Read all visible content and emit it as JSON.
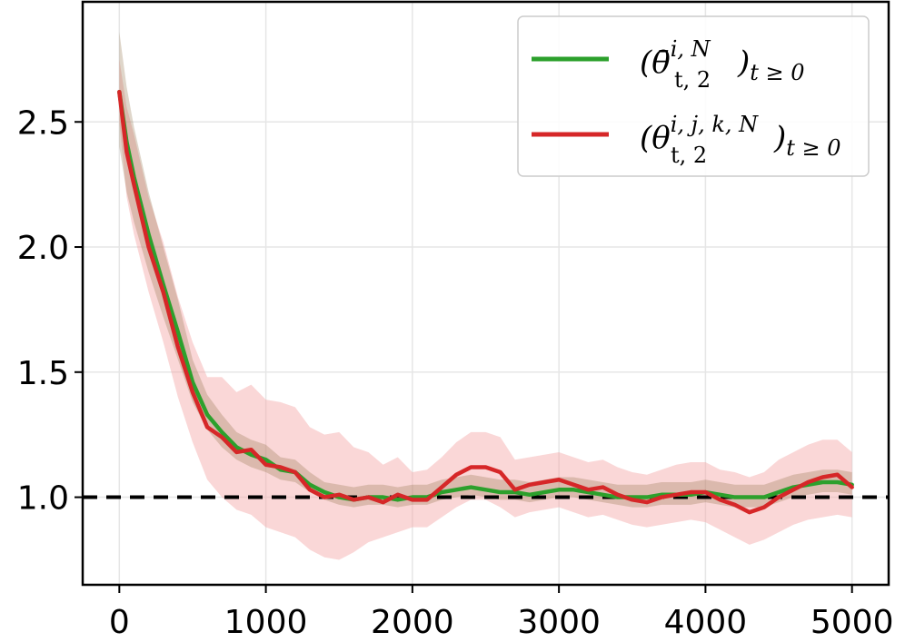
{
  "chart_data": {
    "type": "line",
    "title": "",
    "xlabel": "",
    "ylabel": "",
    "xlim": [
      -250,
      5250
    ],
    "ylim": [
      0.65,
      2.98
    ],
    "xticks": [
      0,
      1000,
      2000,
      3000,
      4000,
      5000
    ],
    "xtick_labels": [
      "0",
      "1000",
      "2000",
      "3000",
      "4000",
      "5000"
    ],
    "yticks": [
      1.0,
      1.5,
      2.0,
      2.5
    ],
    "ytick_labels": [
      "1.0",
      "1.5",
      "2.0",
      "2.5"
    ],
    "grid": true,
    "legend_position": "top-right",
    "reference_line": {
      "y": 1.0,
      "style": "dashed",
      "color": "#000000"
    },
    "series": [
      {
        "name": "(θ̄^{i,N}_{t,2})_{t≥0}",
        "legend": {
          "main": "(θ̄",
          "sup": "i, N",
          "sub": "t, 2",
          "tail": ")",
          "tail_sub": "t ≥ 0"
        },
        "color": "#2ca02c",
        "band_color": "#8c6d3f",
        "band_opacity": 0.28,
        "x": [
          0,
          50,
          100,
          200,
          300,
          400,
          500,
          600,
          700,
          800,
          900,
          1000,
          1100,
          1200,
          1300,
          1400,
          1500,
          1600,
          1700,
          1800,
          1900,
          2000,
          2100,
          2200,
          2300,
          2400,
          2500,
          2600,
          2700,
          2800,
          2900,
          3000,
          3100,
          3200,
          3300,
          3400,
          3500,
          3600,
          3700,
          3800,
          3900,
          4000,
          4100,
          4200,
          4300,
          4400,
          4500,
          4600,
          4700,
          4800,
          4900,
          5000
        ],
        "y": [
          2.62,
          2.42,
          2.28,
          2.05,
          1.85,
          1.66,
          1.46,
          1.33,
          1.26,
          1.2,
          1.17,
          1.15,
          1.11,
          1.1,
          1.05,
          1.02,
          1.0,
          0.99,
          1.0,
          1.0,
          0.99,
          1.0,
          1.0,
          1.02,
          1.03,
          1.04,
          1.03,
          1.02,
          1.02,
          1.01,
          1.02,
          1.03,
          1.03,
          1.02,
          1.01,
          1.0,
          1.0,
          1.0,
          1.01,
          1.01,
          1.01,
          1.02,
          1.01,
          1.0,
          1.0,
          1.0,
          1.02,
          1.04,
          1.05,
          1.06,
          1.06,
          1.05
        ],
        "band_lower": [
          2.4,
          2.22,
          2.1,
          1.9,
          1.72,
          1.55,
          1.38,
          1.27,
          1.2,
          1.15,
          1.12,
          1.1,
          1.07,
          1.06,
          1.02,
          0.99,
          0.97,
          0.96,
          0.97,
          0.97,
          0.96,
          0.97,
          0.97,
          0.99,
          1.0,
          1.01,
          1.0,
          0.99,
          0.99,
          0.98,
          0.99,
          1.0,
          1.0,
          0.99,
          0.98,
          0.97,
          0.96,
          0.96,
          0.97,
          0.97,
          0.97,
          0.98,
          0.97,
          0.96,
          0.96,
          0.96,
          0.98,
          1.0,
          1.01,
          1.02,
          1.02,
          1.01
        ],
        "band_upper": [
          2.86,
          2.64,
          2.48,
          2.22,
          2.0,
          1.79,
          1.55,
          1.41,
          1.33,
          1.26,
          1.23,
          1.21,
          1.16,
          1.15,
          1.1,
          1.06,
          1.05,
          1.04,
          1.05,
          1.05,
          1.04,
          1.05,
          1.05,
          1.07,
          1.08,
          1.09,
          1.08,
          1.07,
          1.07,
          1.06,
          1.07,
          1.08,
          1.08,
          1.07,
          1.06,
          1.05,
          1.05,
          1.05,
          1.06,
          1.06,
          1.06,
          1.07,
          1.06,
          1.05,
          1.05,
          1.05,
          1.07,
          1.09,
          1.1,
          1.11,
          1.11,
          1.1
        ]
      },
      {
        "name": "(θ^{i,j,k,N}_{t,2})_{t≥0}",
        "legend": {
          "main": "(θ",
          "sup": "i, j, k, N",
          "sub": "t, 2",
          "tail": ")",
          "tail_sub": "t ≥ 0"
        },
        "color": "#d62728",
        "band_color": "#f4a6a6",
        "band_opacity": 0.45,
        "x": [
          0,
          50,
          100,
          200,
          300,
          400,
          500,
          600,
          700,
          800,
          900,
          1000,
          1100,
          1200,
          1300,
          1400,
          1500,
          1600,
          1700,
          1800,
          1900,
          2000,
          2100,
          2200,
          2300,
          2400,
          2500,
          2600,
          2700,
          2800,
          2900,
          3000,
          3100,
          3200,
          3300,
          3400,
          3500,
          3600,
          3700,
          3800,
          3900,
          4000,
          4100,
          4200,
          4300,
          4400,
          4500,
          4600,
          4700,
          4800,
          4900,
          5000
        ],
        "y": [
          2.62,
          2.38,
          2.25,
          2.0,
          1.82,
          1.6,
          1.42,
          1.28,
          1.24,
          1.18,
          1.19,
          1.13,
          1.12,
          1.1,
          1.03,
          1.0,
          1.01,
          0.99,
          1.0,
          0.98,
          1.01,
          0.99,
          0.99,
          1.04,
          1.09,
          1.12,
          1.12,
          1.1,
          1.03,
          1.05,
          1.06,
          1.07,
          1.05,
          1.03,
          1.04,
          1.01,
          0.99,
          0.98,
          1.0,
          1.01,
          1.02,
          1.02,
          0.99,
          0.97,
          0.94,
          0.96,
          1.0,
          1.03,
          1.06,
          1.08,
          1.09,
          1.04
        ],
        "band_lower": [
          2.5,
          2.2,
          2.05,
          1.82,
          1.62,
          1.4,
          1.22,
          1.07,
          1.0,
          0.95,
          0.93,
          0.88,
          0.86,
          0.84,
          0.79,
          0.76,
          0.75,
          0.78,
          0.82,
          0.84,
          0.86,
          0.88,
          0.88,
          0.92,
          0.96,
          0.99,
          0.99,
          0.96,
          0.92,
          0.94,
          0.95,
          0.96,
          0.94,
          0.92,
          0.93,
          0.91,
          0.89,
          0.88,
          0.89,
          0.9,
          0.91,
          0.9,
          0.87,
          0.84,
          0.81,
          0.83,
          0.86,
          0.89,
          0.91,
          0.92,
          0.93,
          0.92
        ],
        "band_upper": [
          2.75,
          2.56,
          2.45,
          2.2,
          2.02,
          1.8,
          1.62,
          1.48,
          1.48,
          1.42,
          1.45,
          1.39,
          1.38,
          1.36,
          1.28,
          1.25,
          1.26,
          1.2,
          1.18,
          1.13,
          1.16,
          1.1,
          1.11,
          1.16,
          1.22,
          1.26,
          1.26,
          1.24,
          1.15,
          1.16,
          1.17,
          1.18,
          1.16,
          1.14,
          1.15,
          1.12,
          1.1,
          1.09,
          1.11,
          1.13,
          1.14,
          1.14,
          1.11,
          1.1,
          1.08,
          1.1,
          1.15,
          1.18,
          1.21,
          1.23,
          1.23,
          1.18
        ]
      }
    ]
  }
}
